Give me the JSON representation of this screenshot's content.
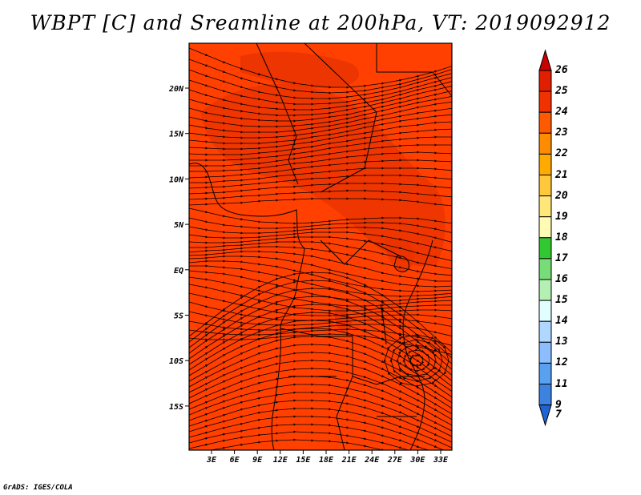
{
  "title": "WBPT [C] and Sreamline at 200hPa, VT: 2019092912",
  "credit": "GrADS: IGES/COLA",
  "map": {
    "lon_labels": [
      "3E",
      "6E",
      "9E",
      "12E",
      "15E",
      "18E",
      "21E",
      "24E",
      "27E",
      "30E",
      "33E"
    ],
    "lat_labels": [
      "20N",
      "15N",
      "10N",
      "5N",
      "EQ",
      "5S",
      "10S",
      "15S"
    ],
    "fill_colors": {
      "base": "#ff4000",
      "warm": "#e83200"
    },
    "streamline_color": "#000000"
  },
  "colorbar": {
    "labels": [
      "26",
      "25",
      "24",
      "23",
      "22",
      "21",
      "20",
      "19",
      "18",
      "17",
      "16",
      "15",
      "14",
      "13",
      "12",
      "11",
      "9",
      "7"
    ],
    "colors": [
      "#c80000",
      "#e01e00",
      "#f03200",
      "#ff5a00",
      "#ff8c00",
      "#ffaa00",
      "#ffc83c",
      "#ffe678",
      "#fffab4",
      "#32c832",
      "#78dc78",
      "#b4f0b4",
      "#e1ffff",
      "#afd7ff",
      "#8cbeff",
      "#5aa0f0",
      "#3c82e1",
      "#1e64d2"
    ]
  }
}
